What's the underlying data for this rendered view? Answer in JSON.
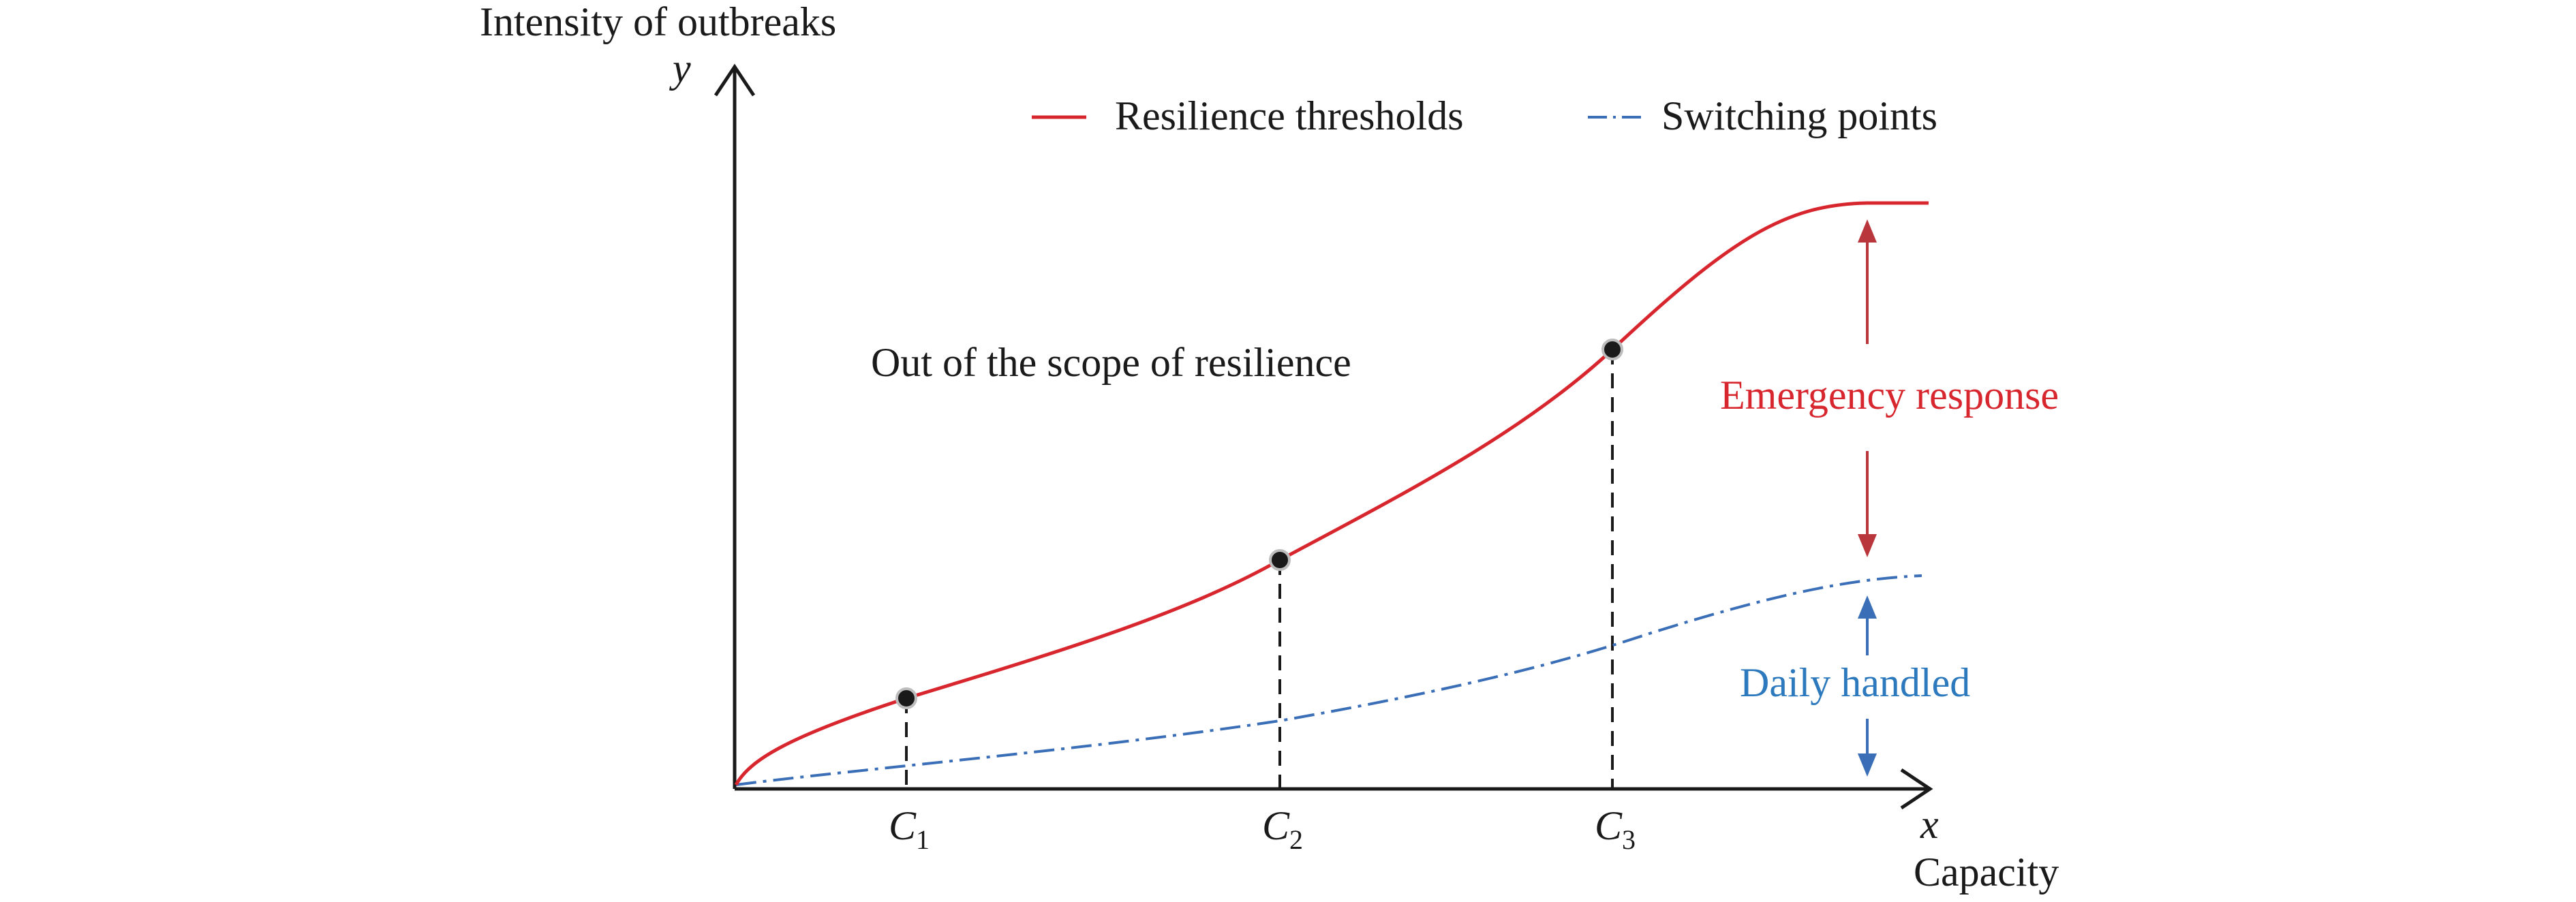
{
  "figure": {
    "y_axis_title": "Intensity of outbreaks",
    "y_axis_symbol": "y",
    "x_axis_title": "Capacity",
    "x_axis_symbol": "x",
    "legend": {
      "items": [
        {
          "label": "Resilience thresholds",
          "style": "solid",
          "color": "#d7262e"
        },
        {
          "label": "Switching points",
          "style": "dash-dot",
          "color": "#3a6fb7"
        }
      ]
    },
    "region_labels": {
      "out_of_scope": "Out of the scope of resilience",
      "emergency": "Emergency response",
      "daily": "Daily handled"
    },
    "capacity_points": [
      {
        "letter": "C",
        "subscript": "1"
      },
      {
        "letter": "C",
        "subscript": "2"
      },
      {
        "letter": "C",
        "subscript": "3"
      }
    ],
    "colors": {
      "threshold": "#d7262e",
      "switching": "#3a6fb7",
      "emergency_text": "#d7262e",
      "emergency_arrow": "#b8363c",
      "daily_text": "#2c79bd",
      "daily_arrow": "#3a6fb7",
      "axis": "#1a1a1a",
      "point": "#1a1a1a"
    }
  }
}
